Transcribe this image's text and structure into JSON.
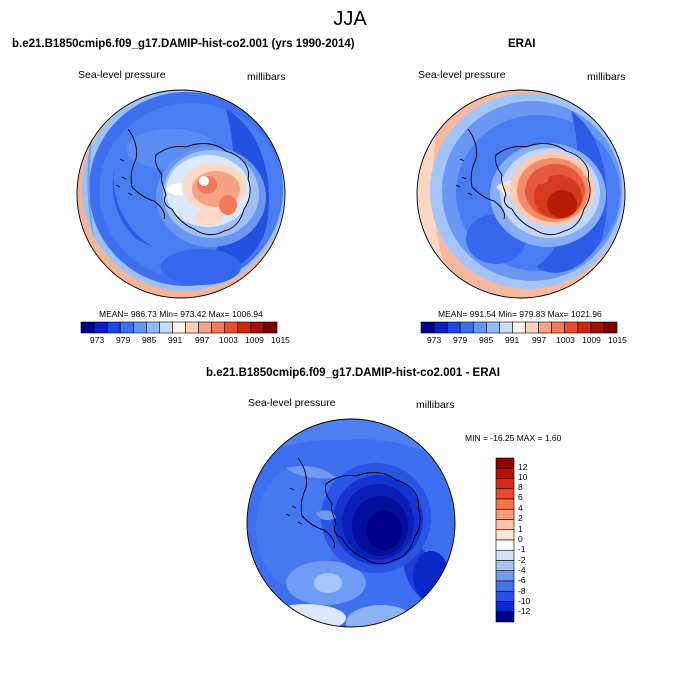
{
  "title": "JJA",
  "panels": [
    {
      "title": "b.e21.B1850cmip6.f09_g17.DAMIP-hist-co2.001 (yrs 1990-2014)",
      "left_label": "Sea-level pressure",
      "right_label": "millibars",
      "stats": "MEAN= 986.73  Min= 973.42  Max= 1006.94",
      "colorbar_ticks": [
        "973",
        "979",
        "985",
        "991",
        "997",
        "1003",
        "1009",
        "1015"
      ],
      "colorbar_colors": [
        "#00008b",
        "#0a20c8",
        "#1e45e6",
        "#3c6ef0",
        "#6496f5",
        "#96b9fa",
        "#c8dcfc",
        "#fff4e6",
        "#fcd2b9",
        "#f5a38a",
        "#f07a5a",
        "#e64c32",
        "#cd280f",
        "#a50f05",
        "#7d0000"
      ]
    },
    {
      "title": "ERAI",
      "left_label": "Sea-level pressure",
      "right_label": "millibars",
      "stats": "MEAN= 991.54  Min= 979.83  Max= 1021.96",
      "colorbar_ticks": [
        "973",
        "979",
        "985",
        "991",
        "997",
        "1003",
        "1009",
        "1015"
      ],
      "colorbar_colors": [
        "#00008b",
        "#0a20c8",
        "#1e45e6",
        "#3c6ef0",
        "#6496f5",
        "#96b9fa",
        "#c8dcfc",
        "#fff4e6",
        "#fcd2b9",
        "#f5a38a",
        "#f07a5a",
        "#e64c32",
        "#cd280f",
        "#a50f05",
        "#7d0000"
      ]
    },
    {
      "title": "b.e21.B1850cmip6.f09_g17.DAMIP-hist-co2.001 - ERAI",
      "left_label": "Sea-level pressure",
      "right_label": "millibars",
      "stats": "MIN = -16.25 MAX =   1.60",
      "colorbar_ticks": [
        "12",
        "10",
        "8",
        "6",
        "4",
        "2",
        "1",
        "0",
        "-1",
        "-2",
        "-4",
        "-6",
        "-8",
        "-10",
        "-12"
      ],
      "colorbar_colors": [
        "#8b0000",
        "#c00d00",
        "#dc2814",
        "#eb4b2d",
        "#f5734b",
        "#fa9b78",
        "#fcc3aa",
        "#fde4d6",
        "#ffffff",
        "#d2e2fa",
        "#a5c3f5",
        "#7399f0",
        "#4673eb",
        "#2350e6",
        "#0a28d2",
        "#00008b"
      ]
    }
  ]
}
